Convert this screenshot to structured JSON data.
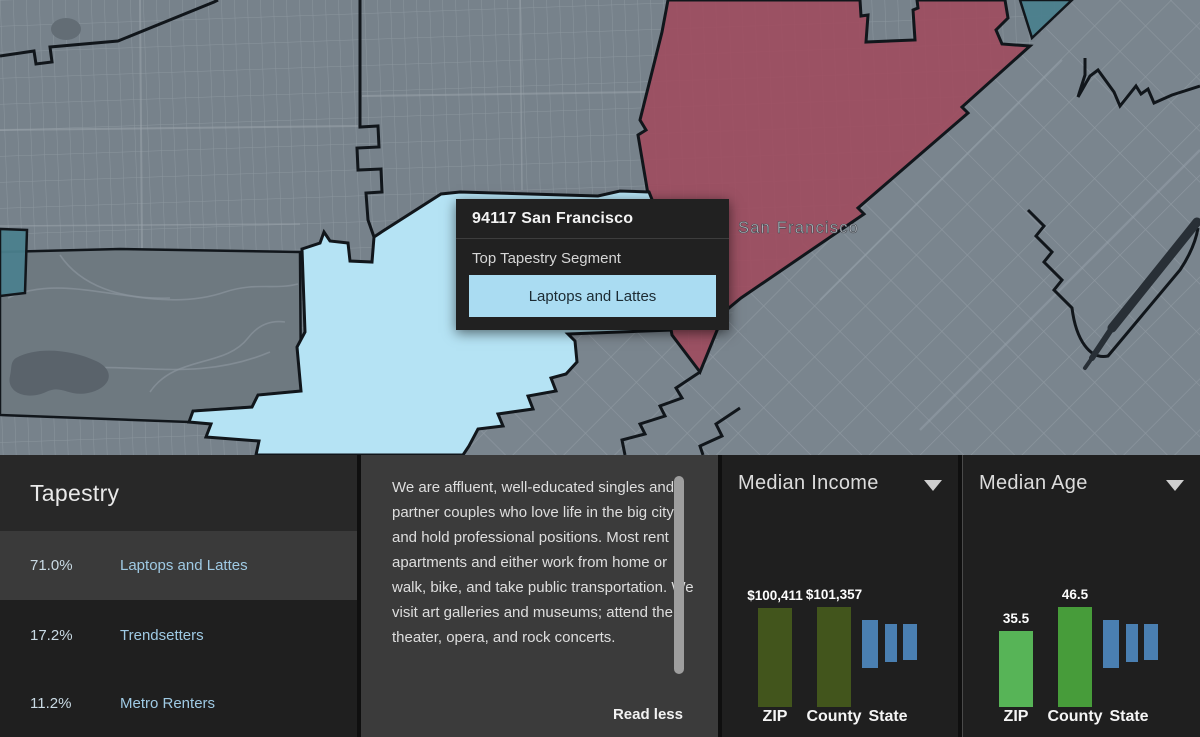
{
  "map": {
    "city_label": "San Francisco",
    "popup": {
      "zip_title": "94117 San Francisco",
      "section_label": "Top Tapestry Segment",
      "segment_name": "Laptops and Lattes"
    },
    "colors": {
      "selected_zip_fill": "#b5e3f4",
      "highlighted_zip_fill": "#a14a5d",
      "teal_zip_fill": "#4b7f8d",
      "basemap": "#77828b",
      "boundary": "#11161b"
    }
  },
  "tapestry": {
    "title": "Tapestry",
    "rows": [
      {
        "percent": "71.0%",
        "name": "Laptops and Lattes",
        "selected": true
      },
      {
        "percent": "17.2%",
        "name": "Trendsetters",
        "selected": false
      },
      {
        "percent": "11.2%",
        "name": "Metro Renters",
        "selected": false
      }
    ]
  },
  "description": {
    "text": "We are affluent, well-educated singles and partner couples who love life in the big city and hold professional positions. Most rent apartments and either work from home or walk, bike, and take public transportation. We visit art galleries and museums; attend the theater, opera, and rock concerts.",
    "toggle_label": "Read less"
  },
  "chart_data": [
    {
      "type": "bar",
      "title": "Median Income",
      "categories": [
        "ZIP",
        "County",
        "State"
      ],
      "series": [
        {
          "label": "ZIP",
          "value": 100411,
          "value_label": "$100,411",
          "color": "#42551c"
        },
        {
          "label": "County",
          "value": 101357,
          "value_label": "$101,357",
          "color": "#42551c"
        },
        {
          "label": "State",
          "value": null,
          "value_label": "",
          "loading": true,
          "color": "#4a7fb1"
        }
      ],
      "max_value": 101357,
      "legend": false,
      "grid": false
    },
    {
      "type": "bar",
      "title": "Median Age",
      "categories": [
        "ZIP",
        "County",
        "State"
      ],
      "series": [
        {
          "label": "ZIP",
          "value": 35.5,
          "value_label": "35.5",
          "color": "#57b457"
        },
        {
          "label": "County",
          "value": 46.5,
          "value_label": "46.5",
          "color": "#479c3a"
        },
        {
          "label": "State",
          "value": null,
          "value_label": "",
          "loading": true,
          "color": "#4a7fb1"
        }
      ],
      "max_value": 46.5,
      "legend": false,
      "grid": false
    }
  ]
}
